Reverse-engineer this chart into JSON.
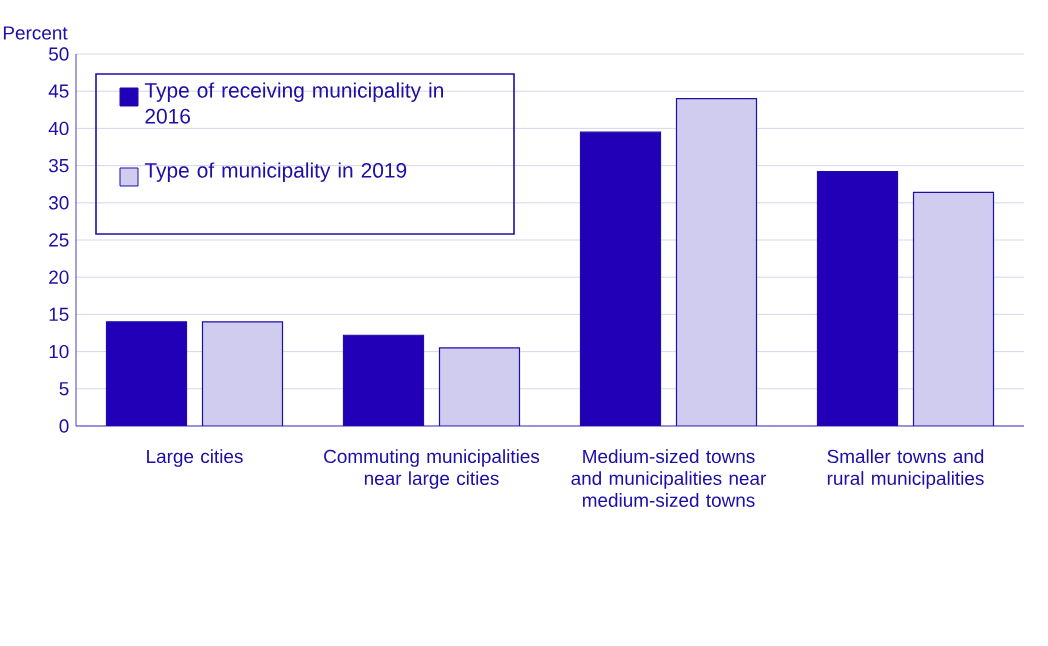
{
  "chart_data": {
    "type": "bar",
    "ylabel": "Percent",
    "categories": [
      "Large cities",
      "Commuting municipalities near large cities",
      "Medium-sized towns and municipalities near medium-sized towns",
      "Smaller towns and rural municipalities"
    ],
    "series": [
      {
        "name": "Type of receiving municipality in 2016",
        "color": "#2200b8",
        "values": [
          14,
          12.2,
          39.5,
          34.2
        ]
      },
      {
        "name": "Type of municipality in 2019",
        "color": "#d0ccf0",
        "values": [
          14,
          10.5,
          44,
          31.4
        ]
      }
    ],
    "ylim": [
      0,
      50
    ],
    "yticks": [
      0,
      5,
      10,
      15,
      20,
      25,
      30,
      35,
      40,
      45,
      50
    ],
    "grid": "y",
    "legend": "top left"
  }
}
